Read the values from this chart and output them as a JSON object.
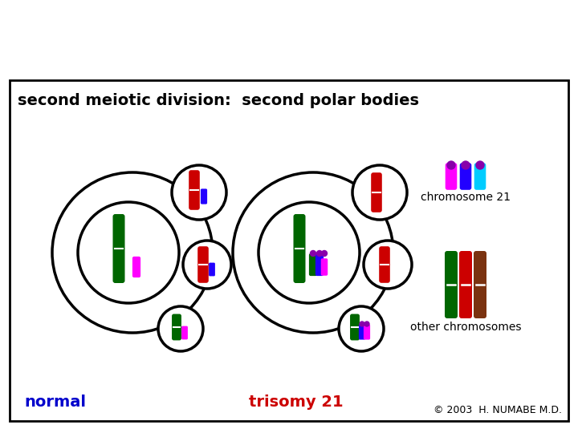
{
  "title": "second meiotic division:  second polar bodies",
  "bg_color": "#ffffff",
  "border_color": "#000000",
  "label_normal": "normal",
  "label_trisomy": "trisomy 21",
  "label_chr21": "chromosome 21",
  "label_other": "other chromosomes",
  "label_copyright": "© 2003  H. NUMABE M.D.",
  "label_normal_color": "#0000cc",
  "label_trisomy_color": "#cc0000",
  "chr21_colors": [
    "#ff00ff",
    "#2200ff",
    "#00ccff"
  ],
  "other_chr_colors": [
    "#006600",
    "#cc0000",
    "#7B3310"
  ],
  "red_chr": "#cc0000",
  "green_chr": "#006600",
  "magenta_chr": "#ff00ff",
  "blue_chr": "#2200ff",
  "cyan_chr": "#00ccff",
  "purple_dot": "#8800aa"
}
